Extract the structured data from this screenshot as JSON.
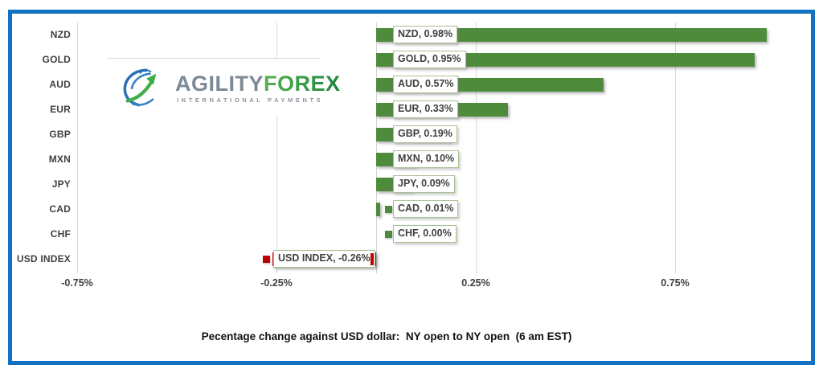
{
  "frame": {
    "border_color": "#1172c3"
  },
  "logo": {
    "brand_part1": "AGILITY",
    "brand_part2": "FOREX",
    "tagline": "INTERNATIONAL PAYMENTS"
  },
  "chart_data": {
    "type": "bar",
    "orientation": "horizontal",
    "title": "Pecentage change against USD dollar:  NY open to NY open  (6 am EST)",
    "categories": [
      "NZD",
      "GOLD",
      "AUD",
      "EUR",
      "GBP",
      "MXN",
      "JPY",
      "CAD",
      "CHF",
      "USD INDEX"
    ],
    "values": [
      0.98,
      0.95,
      0.57,
      0.33,
      0.19,
      0.1,
      0.09,
      0.01,
      0.0,
      -0.26
    ],
    "data_labels": [
      "NZD, 0.98%",
      "GOLD, 0.95%",
      "AUD, 0.57%",
      "EUR, 0.33%",
      "GBP, 0.19%",
      "MXN, 0.10%",
      "JPY, 0.09%",
      "CAD, 0.01%",
      "CHF, 0.00%",
      "USD INDEX, -0.26%"
    ],
    "x_ticks": [
      {
        "label": "-0.75%",
        "value": -0.75
      },
      {
        "label": "-0.25%",
        "value": -0.25
      },
      {
        "label": "0.25%",
        "value": 0.25
      },
      {
        "label": "0.75%",
        "value": 0.75
      }
    ],
    "xlim": [
      -0.85,
      1.1
    ],
    "grid": true,
    "legend_position": "none",
    "units": "%",
    "colors": {
      "positive_bar": "#4e8b3b",
      "negative_bar": "#c00000",
      "label_box_border": "#a9c193",
      "gridline": "#d9d9d9",
      "text": "#404040"
    }
  }
}
